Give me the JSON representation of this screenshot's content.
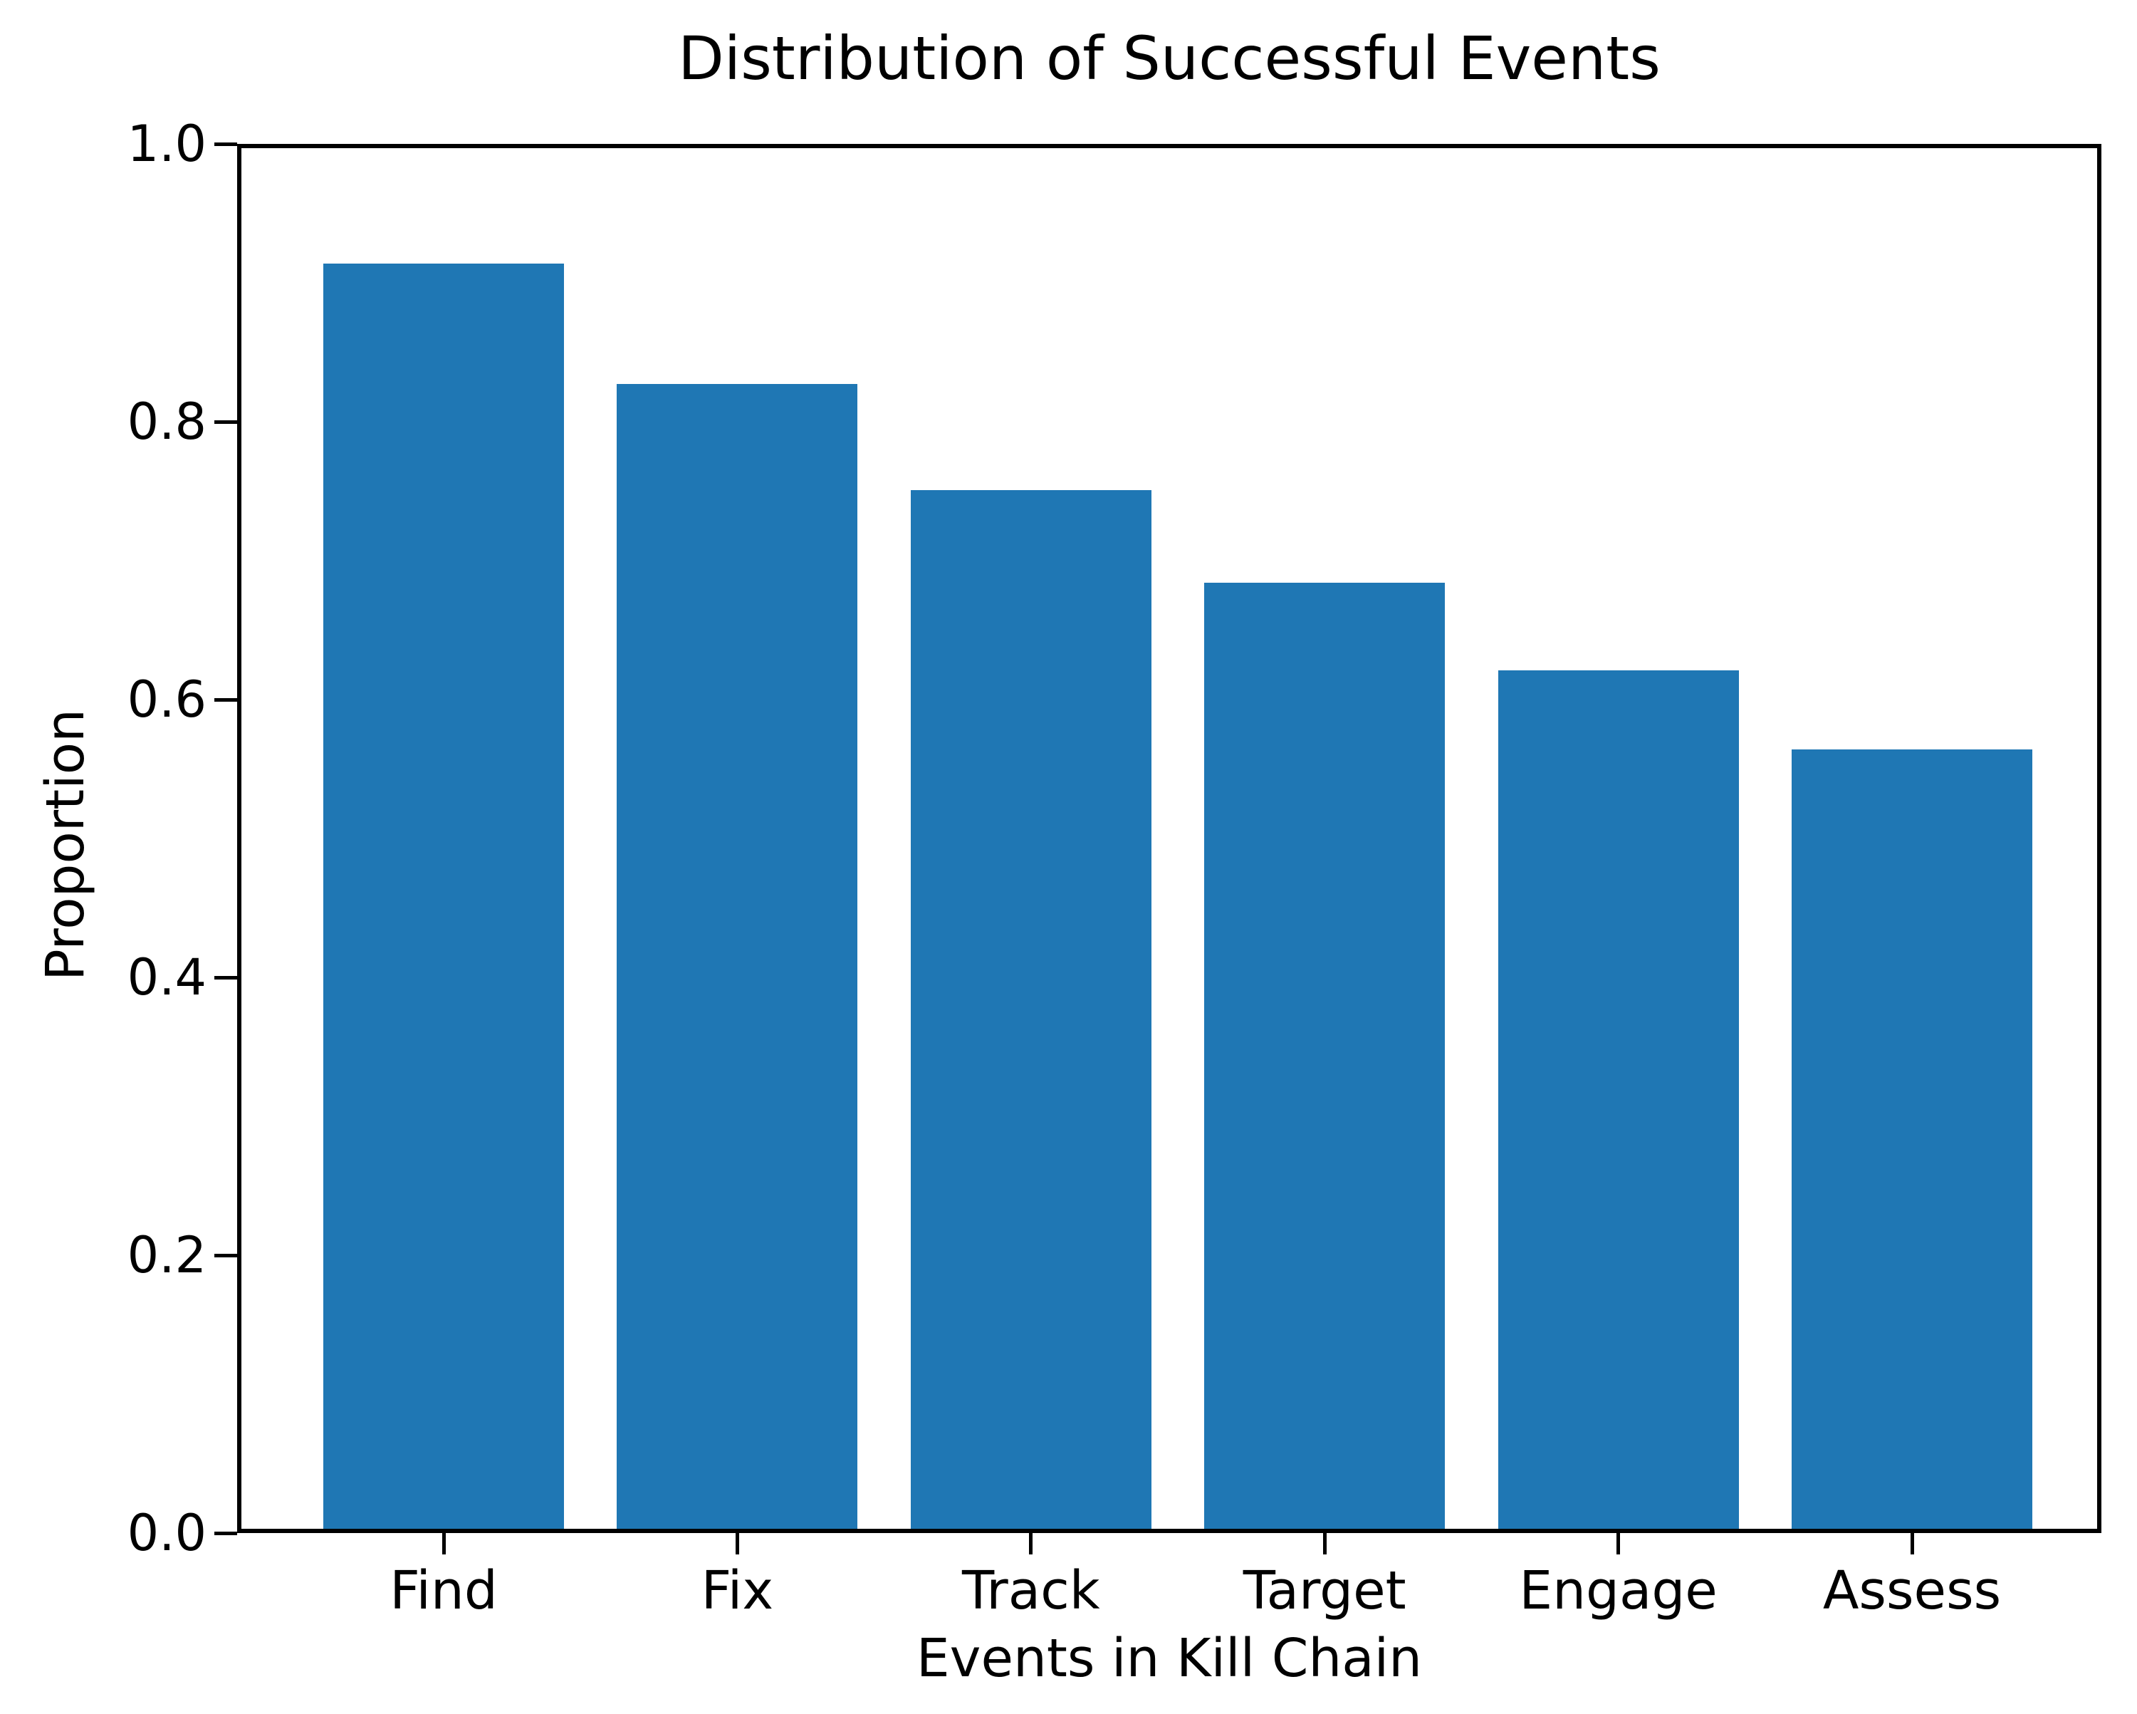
{
  "chart_data": {
    "type": "bar",
    "title": "Distribution of Successful Events",
    "xlabel": "Events in Kill Chain",
    "ylabel": "Proportion",
    "categories": [
      "Find",
      "Fix",
      "Track",
      "Target",
      "Engage",
      "Assess"
    ],
    "values": [
      0.914,
      0.827,
      0.751,
      0.684,
      0.621,
      0.564
    ],
    "ytick_labels": [
      "1.0",
      "0.8",
      "0.6",
      "0.4",
      "0.2",
      "0.0"
    ],
    "ylim": [
      0.0,
      1.0
    ],
    "bar_color": "#1f77b4",
    "axis_color": "#000000",
    "background_color": "#ffffff",
    "grid": false,
    "legend": null
  }
}
